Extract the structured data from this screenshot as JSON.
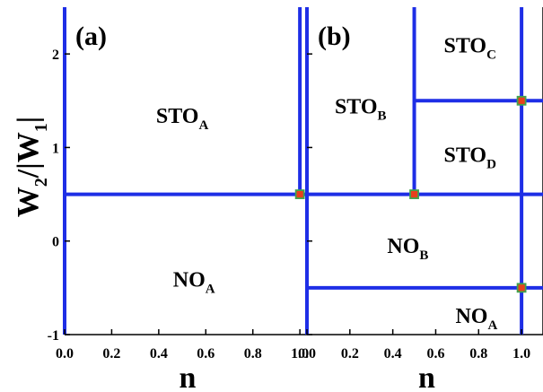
{
  "chart_data": {
    "type": "line",
    "ylabel_main": "W",
    "ylabel_sub": "2",
    "ylabel_bar_main": "/|W",
    "ylabel_bar_sub": "1",
    "ylabel_tail": "|",
    "xlabel": "n",
    "ylim": [
      -1,
      2.5
    ],
    "yticks": [
      -1,
      0,
      1,
      2
    ],
    "panels": [
      {
        "label": "(a)",
        "xlim": [
          0,
          1.03
        ],
        "xticks": [
          "0.0",
          "0.2",
          "0.4",
          "0.6",
          "0.8",
          "1.0"
        ],
        "xtick_values": [
          0,
          0.2,
          0.4,
          0.6,
          0.8,
          1.0
        ],
        "boundaries": [
          {
            "type": "vertical",
            "x": 0,
            "y_from": -1,
            "y_to": 2.5
          },
          {
            "type": "vertical",
            "x": 1.0,
            "y_from": 0.5,
            "y_to": 2.5
          },
          {
            "type": "horizontal",
            "y": 0.5,
            "x_from": 0,
            "x_to": 1.03
          }
        ],
        "points": [
          {
            "x": 1.0,
            "y": 0.5
          }
        ],
        "regions": [
          {
            "main": "STO",
            "sub": "A",
            "x": 0.5,
            "y": 1.35
          },
          {
            "main": "NO",
            "sub": "A",
            "x": 0.55,
            "y": -0.4
          }
        ]
      },
      {
        "label": "(b)",
        "xlim": [
          0,
          1.1
        ],
        "xticks": [
          "0.0",
          "0.2",
          "0.4",
          "0.6",
          "0.8",
          "1.0"
        ],
        "xtick_values": [
          0,
          0.2,
          0.4,
          0.6,
          0.8,
          1.0
        ],
        "boundaries": [
          {
            "type": "vertical",
            "x": 0,
            "y_from": -1,
            "y_to": 2.5
          },
          {
            "type": "vertical",
            "x": 0.5,
            "y_from": 0.5,
            "y_to": 2.5
          },
          {
            "type": "vertical",
            "x": 1.0,
            "y_from": -1,
            "y_to": 2.5
          },
          {
            "type": "horizontal",
            "y": 1.5,
            "x_from": 0.5,
            "x_to": 1.1
          },
          {
            "type": "horizontal",
            "y": 0.5,
            "x_from": 0,
            "x_to": 1.1
          },
          {
            "type": "horizontal",
            "y": -0.5,
            "x_from": 0,
            "x_to": 1.1
          }
        ],
        "points": [
          {
            "x": 0.5,
            "y": 0.5
          },
          {
            "x": 1.0,
            "y": 1.5
          },
          {
            "x": 1.0,
            "y": -0.5
          }
        ],
        "regions": [
          {
            "main": "STO",
            "sub": "B",
            "x": 0.25,
            "y": 1.45
          },
          {
            "main": "STO",
            "sub": "C",
            "x": 0.76,
            "y": 2.1
          },
          {
            "main": "STO",
            "sub": "D",
            "x": 0.76,
            "y": 0.93
          },
          {
            "main": "NO",
            "sub": "B",
            "x": 0.47,
            "y": -0.04
          },
          {
            "main": "NO",
            "sub": "A",
            "x": 0.79,
            "y": -0.79
          }
        ]
      }
    ],
    "line_color": "#1e2ee6",
    "point_fill": "#e8401c",
    "point_edge": "#3fa34d",
    "grid": false
  }
}
